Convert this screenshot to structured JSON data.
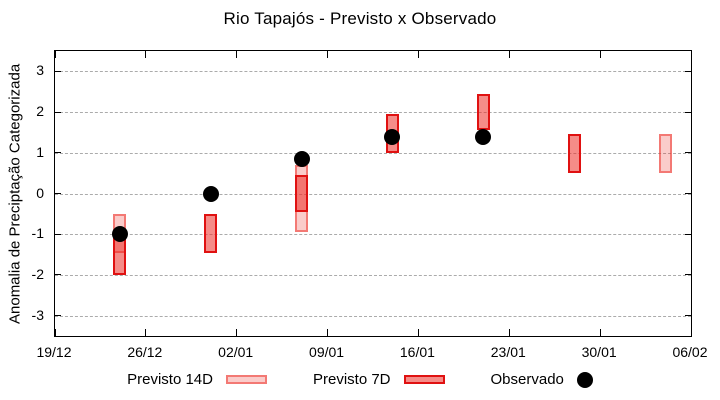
{
  "chart_data": {
    "type": "candlestick-range-bars-with-scatter",
    "title": "Rio Tapajós - Previsto x Observado",
    "ylabel": "Anomalia de Preciptação Categorizada",
    "ylim": [
      -3.5,
      3.5
    ],
    "yticks": [
      3,
      2,
      1,
      0,
      -1,
      -2,
      -3
    ],
    "xtick_labels": [
      "19/12",
      "26/12",
      "02/01",
      "09/01",
      "16/01",
      "23/01",
      "30/01",
      "06/02"
    ],
    "xtick_interval_days": 7,
    "x_span_days": 49,
    "grid": "horizontal dashed gridlines at integer y values",
    "legend_position": "bottom, outside plot",
    "colors": {
      "previsto14d_fill": "rgba(236,52,45,0.25)",
      "previsto14d_border": "rgba(236,52,45,0.55)",
      "previsto7d_fill": "rgba(236,45,38,0.55)",
      "previsto7d_border": "#e01111",
      "observado": "#000000",
      "grid": "#ababab"
    },
    "series": [
      {
        "name": "Previsto 14D",
        "type": "range-box",
        "points": [
          {
            "date": "24/12",
            "day": 5,
            "high": -0.5,
            "low": -1.45
          },
          {
            "date": "07/01",
            "day": 19,
            "high": 0.7,
            "low": -0.95
          },
          {
            "date": "04/02",
            "day": 47,
            "high": 1.45,
            "low": 0.5
          }
        ]
      },
      {
        "name": "Previsto 7D",
        "type": "range-box",
        "points": [
          {
            "date": "24/12",
            "day": 5,
            "high": -1.0,
            "low": -2.0
          },
          {
            "date": "31/12",
            "day": 12,
            "high": -0.5,
            "low": -1.45
          },
          {
            "date": "07/01",
            "day": 19,
            "high": 0.45,
            "low": -0.45
          },
          {
            "date": "14/01",
            "day": 26,
            "high": 1.95,
            "low": 1.0
          },
          {
            "date": "21/01",
            "day": 33,
            "high": 2.45,
            "low": 1.55
          },
          {
            "date": "28/01",
            "day": 40,
            "high": 1.45,
            "low": 0.5
          }
        ]
      },
      {
        "name": "Observado",
        "type": "scatter",
        "points": [
          {
            "date": "24/12",
            "day": 5,
            "value": -1.0
          },
          {
            "date": "31/12",
            "day": 12,
            "value": 0.0
          },
          {
            "date": "07/01",
            "day": 19,
            "value": 0.85
          },
          {
            "date": "14/01",
            "day": 26,
            "value": 1.4
          },
          {
            "date": "21/01",
            "day": 33,
            "value": 1.4
          }
        ]
      }
    ]
  }
}
